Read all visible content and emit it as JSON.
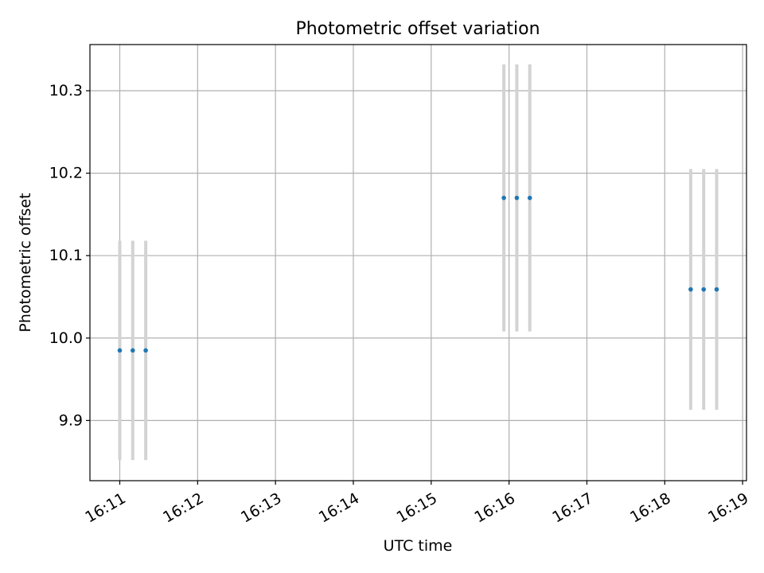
{
  "chart_data": {
    "type": "scatter",
    "title": "Photometric offset variation",
    "xlabel": "UTC time",
    "ylabel": "Photometric offset",
    "x_ticks": [
      "16:11",
      "16:12",
      "16:13",
      "16:14",
      "16:15",
      "16:16",
      "16:17",
      "16:18",
      "16:19"
    ],
    "y_ticks": [
      "9.9",
      "10.0",
      "10.1",
      "10.2",
      "10.3"
    ],
    "ylim": [
      9.827,
      10.356
    ],
    "xlim": [
      "16:10:37",
      "16:19:03"
    ],
    "grid": true,
    "colors": {
      "point": "#1f77b4",
      "errorbar": "#d3d3d3",
      "grid": "#b0b0b0",
      "axes": "#000000"
    },
    "series": [
      {
        "x": [
          "16:11:00",
          "16:11:10",
          "16:11:20",
          "16:15:56",
          "16:16:06",
          "16:16:16",
          "16:18:20",
          "16:18:30",
          "16:18:40"
        ],
        "y": [
          9.985,
          9.985,
          9.985,
          10.17,
          10.17,
          10.17,
          10.059,
          10.059,
          10.059
        ],
        "yerr": [
          0.133,
          0.133,
          0.133,
          0.162,
          0.162,
          0.162,
          0.146,
          0.146,
          0.146
        ]
      }
    ]
  }
}
